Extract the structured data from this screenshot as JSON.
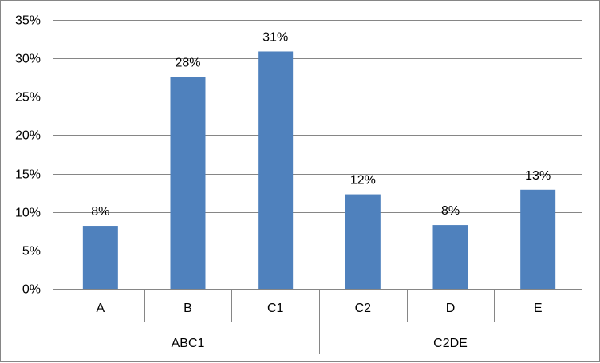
{
  "chart_data": {
    "type": "bar",
    "title": "",
    "xlabel": "",
    "ylabel": "",
    "ylim": [
      0,
      35
    ],
    "y_ticks": [
      "0%",
      "5%",
      "10%",
      "15%",
      "20%",
      "25%",
      "30%",
      "35%"
    ],
    "y_tick_values": [
      0,
      5,
      10,
      15,
      20,
      25,
      30,
      35
    ],
    "grid": true,
    "legend": "none",
    "categories": [
      "A",
      "B",
      "C1",
      "C2",
      "D",
      "E"
    ],
    "groups": [
      {
        "label": "ABC1",
        "categories": [
          "A",
          "B",
          "C1"
        ]
      },
      {
        "label": "C2DE",
        "categories": [
          "C2",
          "D",
          "E"
        ]
      }
    ],
    "series": [
      {
        "values": [
          8.2,
          27.6,
          30.9,
          12.3,
          8.3,
          12.9
        ],
        "data_labels": [
          "8%",
          "28%",
          "31%",
          "12%",
          "8%",
          "13%"
        ]
      }
    ],
    "colors": {
      "bar": "#4F81BD",
      "grid": "#868686",
      "axis": "#868686"
    }
  }
}
